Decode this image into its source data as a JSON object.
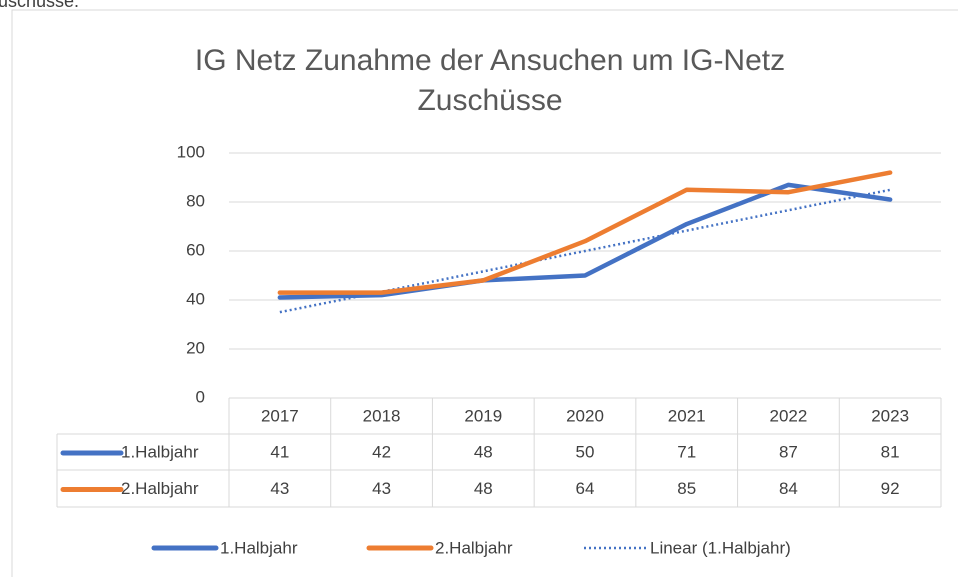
{
  "page_text": "uschüsse.",
  "chart_data": {
    "type": "line",
    "title": [
      "IG Netz Zunahme der Ansuchen um IG-Netz",
      "Zuschüsse"
    ],
    "categories": [
      "2017",
      "2018",
      "2019",
      "2020",
      "2021",
      "2022",
      "2023"
    ],
    "series": [
      {
        "name": "1.Halbjahr",
        "color": "#4472c4",
        "values": [
          41,
          42,
          48,
          50,
          71,
          87,
          81
        ]
      },
      {
        "name": "2.Halbjahr",
        "color": "#ed7d31",
        "values": [
          43,
          43,
          48,
          64,
          85,
          84,
          92
        ]
      }
    ],
    "trendline": {
      "name": "Linear (1.Halbjahr)",
      "series": 0,
      "kind": "linear",
      "color": "#4472c4"
    },
    "ylim": [
      0,
      100
    ],
    "yticks": [
      0,
      20,
      40,
      60,
      80,
      100
    ],
    "grid": true,
    "data_table": true,
    "legend": "bottom"
  }
}
